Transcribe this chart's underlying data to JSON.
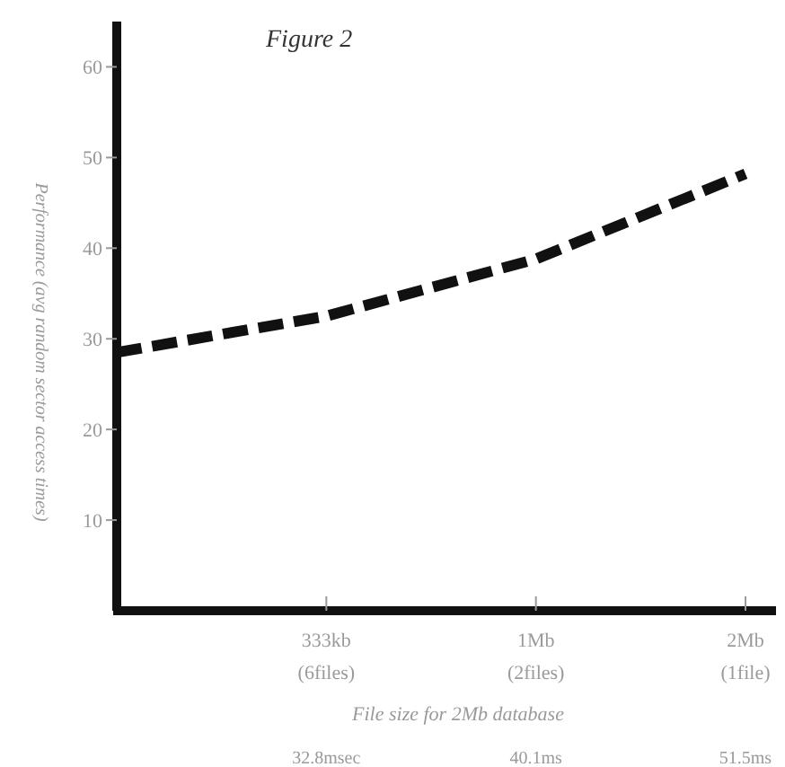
{
  "chart_data": {
    "type": "line",
    "title": "Figure 2",
    "xlabel": "File size for 2Mb database",
    "ylabel": "Performance (avg random sector access times)",
    "categories": [
      null,
      "333kb\n(6files)",
      "1Mb\n(2files)",
      "2Mb\n(1file)"
    ],
    "series": [
      {
        "color": "#111111",
        "values": [
          28.5,
          32.5,
          38.8,
          48.2
        ]
      }
    ],
    "ylim": [
      0,
      65
    ],
    "yticks": [
      10,
      20,
      30,
      40,
      50,
      60
    ],
    "line_style": "dashed",
    "marker": "none",
    "grid": false,
    "annotations": [
      "32.8msec",
      "40.1ms",
      "51.5ms"
    ]
  }
}
